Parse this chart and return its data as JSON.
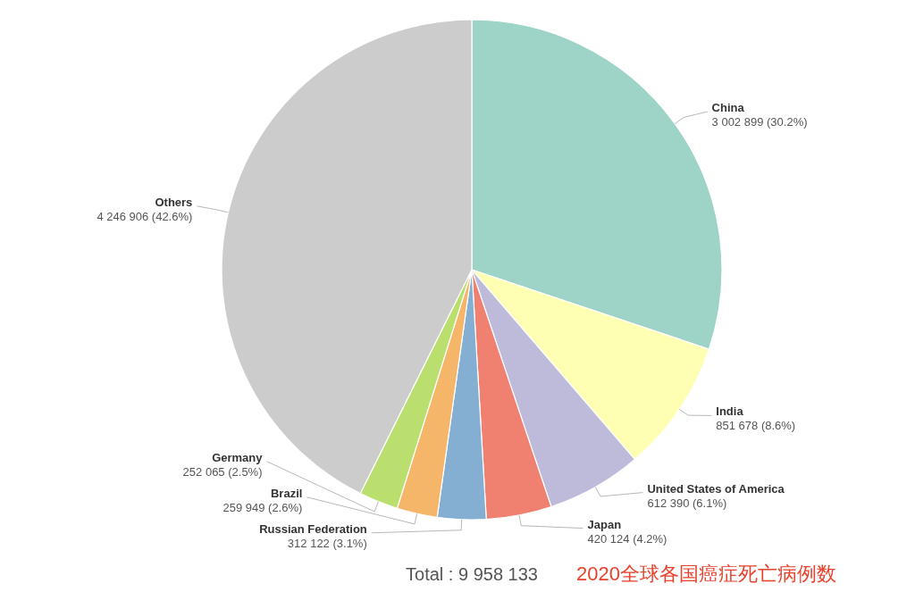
{
  "chart_data": {
    "type": "pie",
    "title": "2020全球各国癌症死亡病例数",
    "categories": [
      "China",
      "India",
      "United States of America",
      "Japan",
      "Russian Federation",
      "Brazil",
      "Germany",
      "Others"
    ],
    "values": [
      3002899,
      851678,
      612390,
      420124,
      312122,
      259949,
      252065,
      4246906
    ],
    "colors": [
      "#9ed3c7",
      "#ffffb3",
      "#bebada",
      "#f08070",
      "#84aed2",
      "#f5b66a",
      "#badf6e",
      "#cccccc"
    ],
    "value_labels": [
      "3 002 899 (30.2%)",
      "851 678 (8.6%)",
      "612 390 (6.1%)",
      "420 124 (4.2%)",
      "312 122 (3.1%)",
      "259 949 (2.6%)",
      "252 065 (2.5%)",
      "4 246 906 (42.6%)"
    ],
    "annotations": [
      "Total : 9 958 133"
    ]
  }
}
